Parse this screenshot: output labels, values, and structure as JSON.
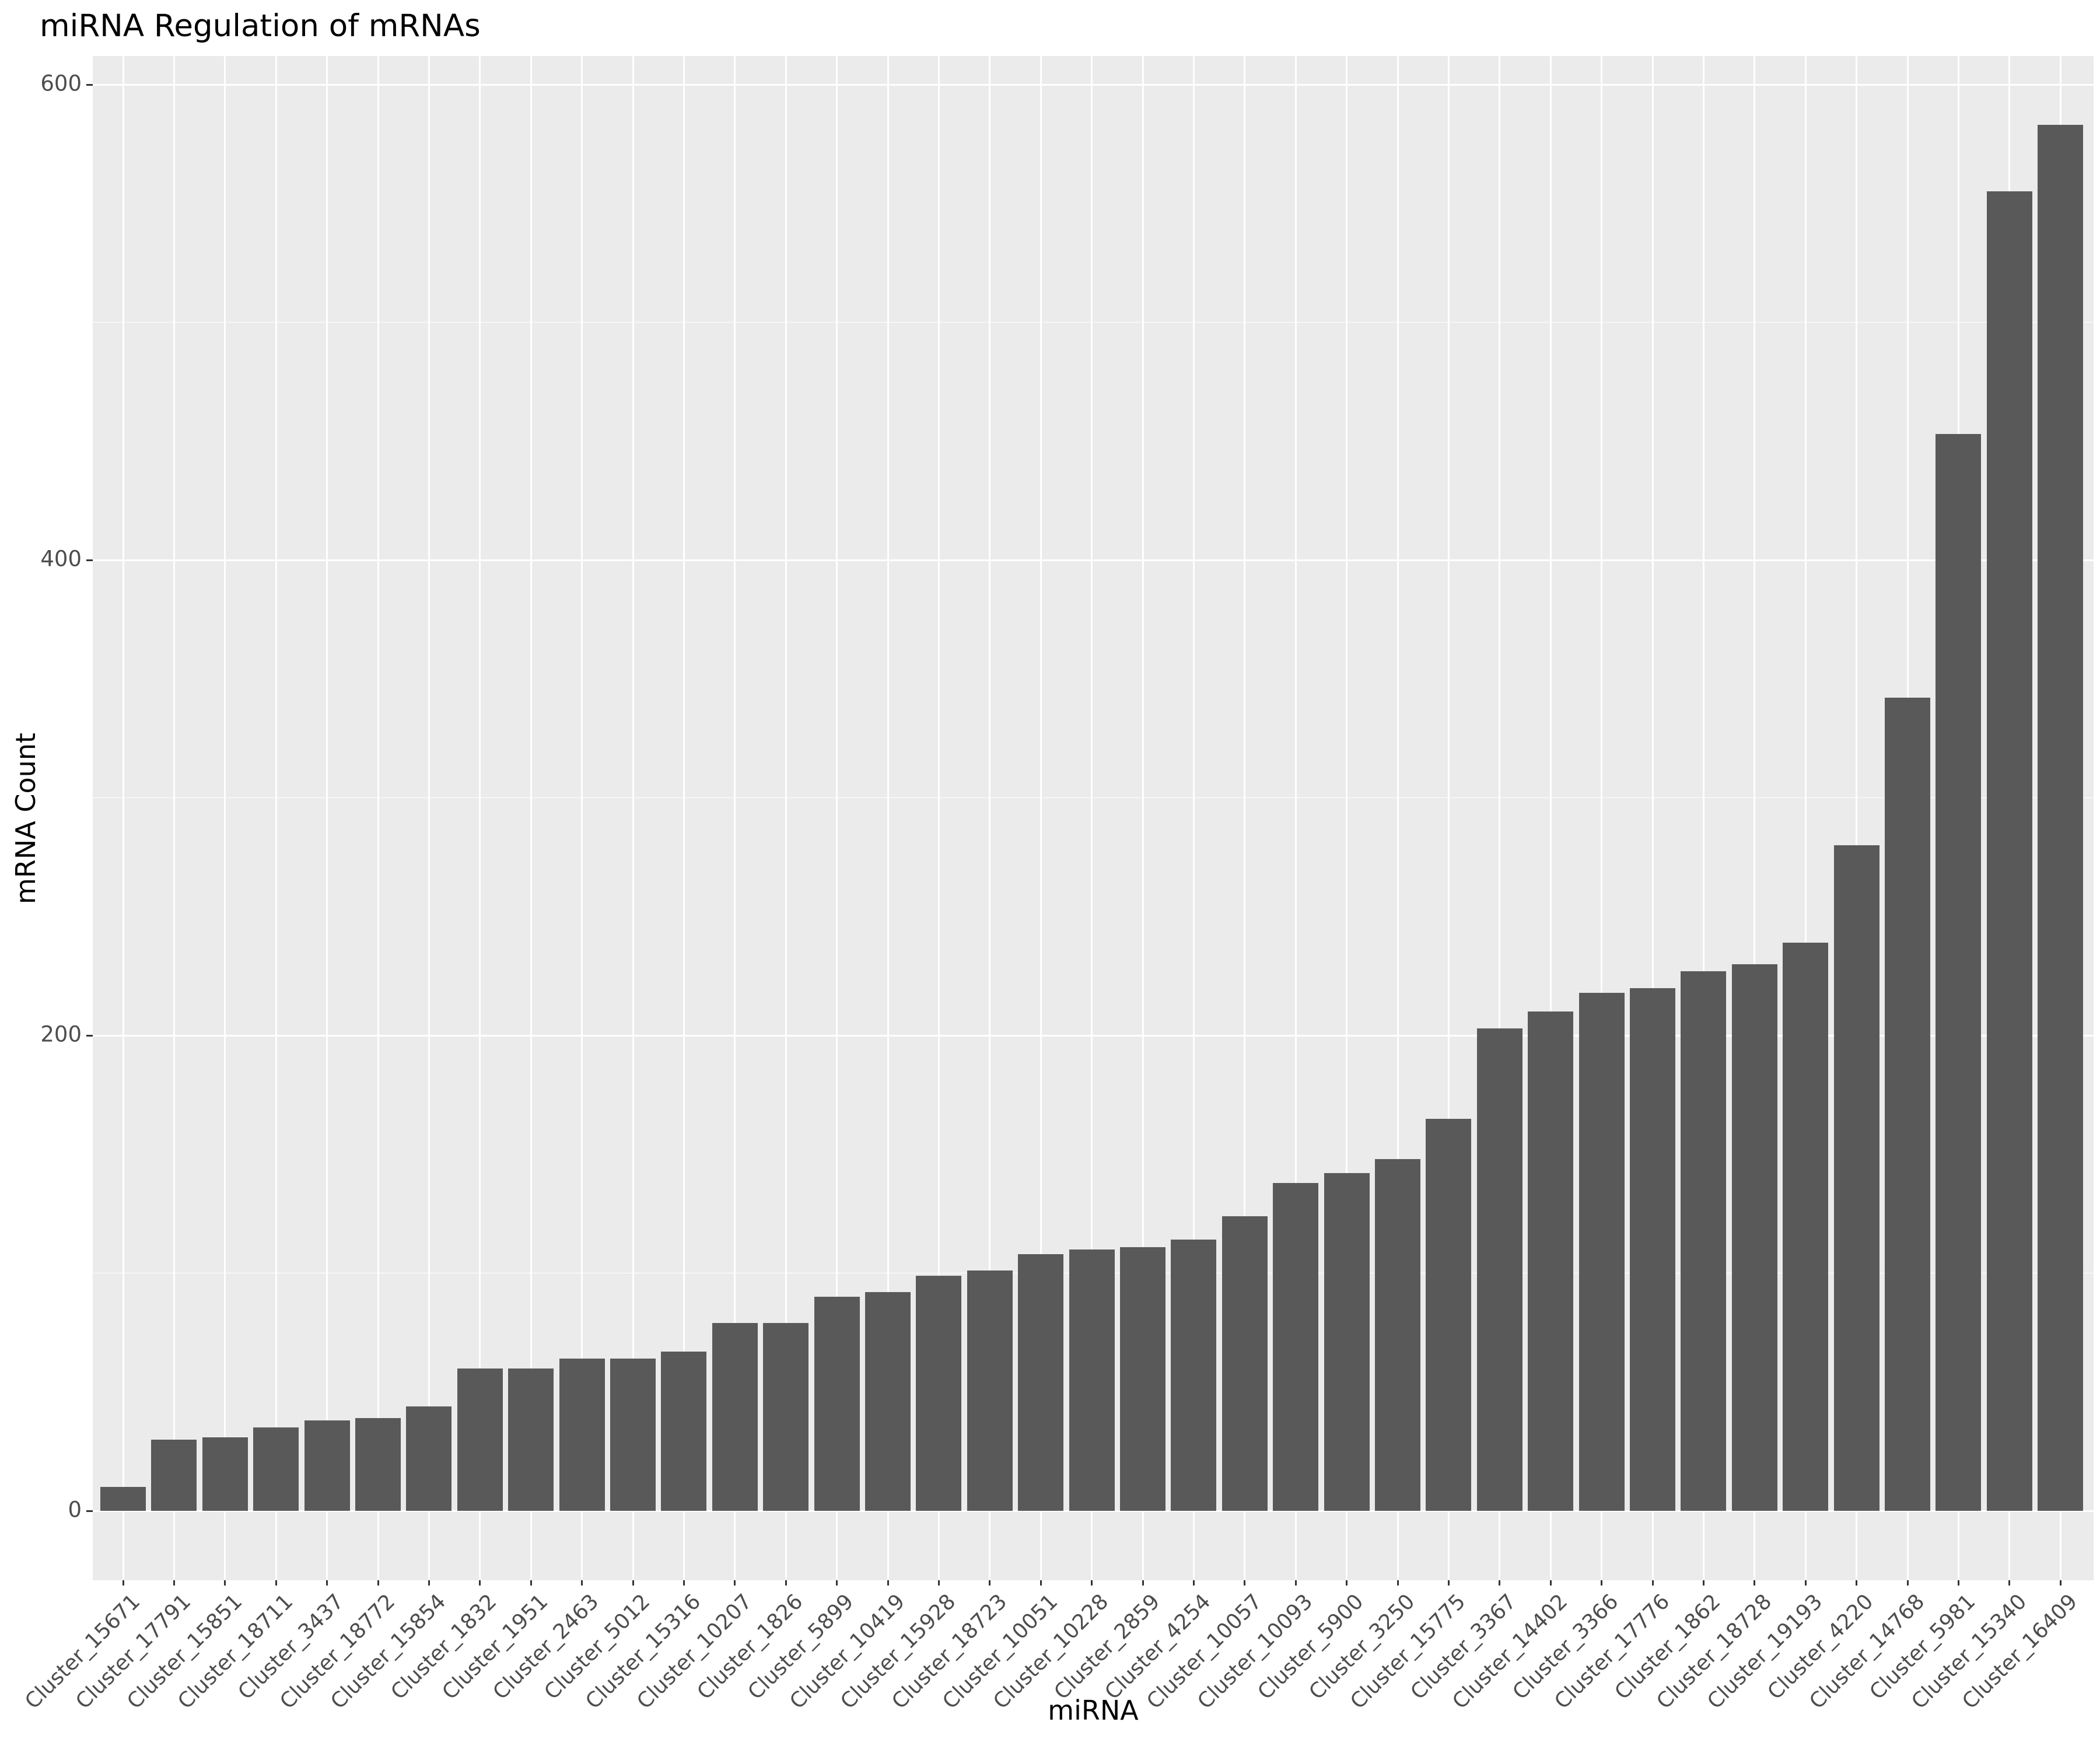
{
  "chart_data": {
    "type": "bar",
    "title": "miRNA Regulation of mRNAs",
    "xlabel": "miRNA",
    "ylabel": "mRNA Count",
    "categories": [
      "Cluster_15671",
      "Cluster_17791",
      "Cluster_15851",
      "Cluster_18711",
      "Cluster_3437",
      "Cluster_18772",
      "Cluster_15854",
      "Cluster_1832",
      "Cluster_1951",
      "Cluster_2463",
      "Cluster_5012",
      "Cluster_15316",
      "Cluster_10207",
      "Cluster_1826",
      "Cluster_5899",
      "Cluster_10419",
      "Cluster_15928",
      "Cluster_18723",
      "Cluster_10051",
      "Cluster_10228",
      "Cluster_2859",
      "Cluster_4254",
      "Cluster_10057",
      "Cluster_10093",
      "Cluster_5900",
      "Cluster_3250",
      "Cluster_15775",
      "Cluster_3367",
      "Cluster_14402",
      "Cluster_3366",
      "Cluster_17776",
      "Cluster_1862",
      "Cluster_18728",
      "Cluster_19193",
      "Cluster_4220",
      "Cluster_14768",
      "Cluster_5981",
      "Cluster_15340",
      "Cluster_16409"
    ],
    "values": [
      10,
      30,
      31,
      35,
      38,
      39,
      44,
      60,
      60,
      64,
      64,
      67,
      79,
      79,
      90,
      92,
      99,
      101,
      108,
      110,
      111,
      114,
      124,
      138,
      142,
      148,
      165,
      203,
      210,
      218,
      220,
      227,
      230,
      239,
      280,
      342,
      453,
      555,
      583
    ],
    "ylim": [
      0,
      612
    ],
    "yticks": [
      0,
      200,
      400,
      600
    ],
    "yticks_minor": [
      100,
      300,
      500
    ],
    "grid": "on",
    "legend": "none",
    "bar_color": "#595959",
    "panel_background": "#EBEBEB",
    "grid_color": "#FFFFFF",
    "axis_text_color": "#4D4D4D",
    "tick_mark_color": "#333333",
    "title_color": "#000000"
  }
}
